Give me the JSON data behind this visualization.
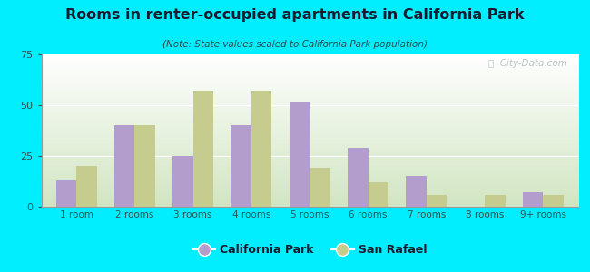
{
  "title": "Rooms in renter-occupied apartments in California Park",
  "subtitle": "(Note: State values scaled to California Park population)",
  "categories": [
    "1 room",
    "2 rooms",
    "3 rooms",
    "4 rooms",
    "5 rooms",
    "6 rooms",
    "7 rooms",
    "8 rooms",
    "9+ rooms"
  ],
  "california_park": [
    13,
    40,
    25,
    40,
    52,
    29,
    15,
    0,
    7
  ],
  "san_rafael": [
    20,
    40,
    57,
    57,
    19,
    12,
    6,
    6,
    6
  ],
  "cp_color": "#b39dcc",
  "sr_color": "#c5cc8e",
  "bg_outer": "#00eeff",
  "ylim": [
    0,
    75
  ],
  "yticks": [
    0,
    25,
    50,
    75
  ],
  "bar_width": 0.35,
  "legend_labels": [
    "California Park",
    "San Rafael"
  ],
  "watermark": "ⓘ  City-Data.com",
  "title_color": "#1a1a2e",
  "subtitle_color": "#2a4a4a",
  "tick_color": "#2a5555",
  "grid_color": "#ffffff"
}
